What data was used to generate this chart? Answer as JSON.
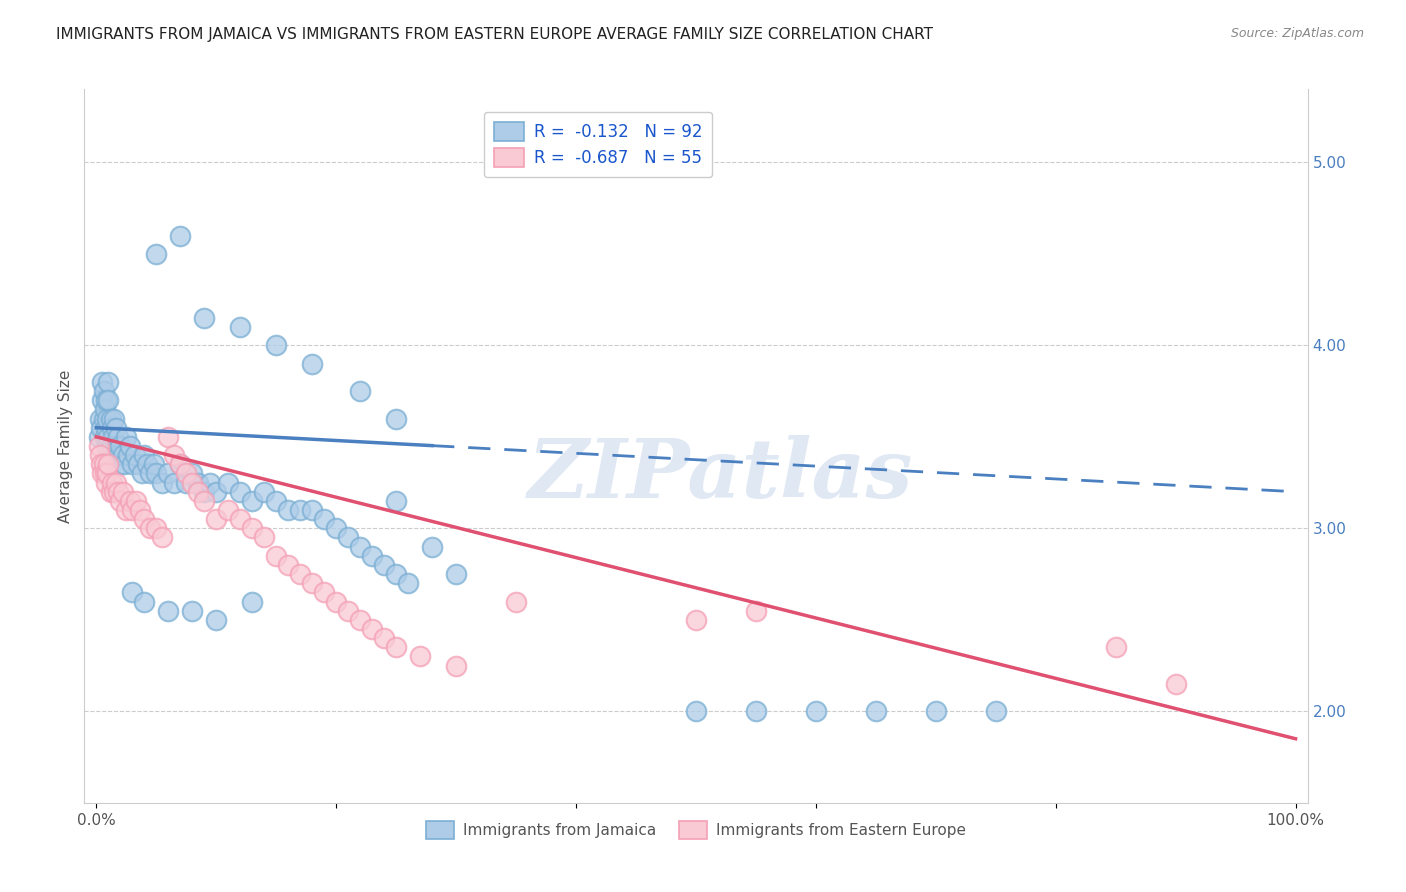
{
  "title": "IMMIGRANTS FROM JAMAICA VS IMMIGRANTS FROM EASTERN EUROPE AVERAGE FAMILY SIZE CORRELATION CHART",
  "source": "Source: ZipAtlas.com",
  "ylabel": "Average Family Size",
  "ylim": [
    1.5,
    5.4
  ],
  "xlim": [
    -0.01,
    1.01
  ],
  "right_yticks": [
    2.0,
    3.0,
    4.0,
    5.0
  ],
  "watermark": "ZIPatlas",
  "blue_color": "#7bafd4",
  "blue_fill": "#aecce8",
  "pink_color": "#f4a0b5",
  "pink_fill": "#f9cad4",
  "line_blue": "#4a7fc0",
  "line_pink": "#e05070",
  "jamaica_label": "Immigrants from Jamaica",
  "eastern_label": "Immigrants from Eastern Europe",
  "jamaica_trendline_x": [
    0.0,
    1.0
  ],
  "jamaica_trendline_y": [
    3.55,
    3.2
  ],
  "eastern_trendline_x": [
    0.0,
    1.0
  ],
  "eastern_trendline_y": [
    3.5,
    1.85
  ],
  "jamaica_scatter_x": [
    0.002,
    0.003,
    0.004,
    0.005,
    0.005,
    0.006,
    0.006,
    0.007,
    0.007,
    0.008,
    0.008,
    0.009,
    0.009,
    0.01,
    0.01,
    0.01,
    0.012,
    0.012,
    0.013,
    0.013,
    0.014,
    0.015,
    0.015,
    0.016,
    0.017,
    0.018,
    0.019,
    0.02,
    0.02,
    0.022,
    0.023,
    0.025,
    0.026,
    0.028,
    0.03,
    0.032,
    0.035,
    0.038,
    0.04,
    0.042,
    0.045,
    0.048,
    0.05,
    0.055,
    0.06,
    0.065,
    0.07,
    0.075,
    0.08,
    0.085,
    0.09,
    0.095,
    0.1,
    0.11,
    0.12,
    0.13,
    0.14,
    0.15,
    0.16,
    0.17,
    0.18,
    0.19,
    0.2,
    0.21,
    0.22,
    0.23,
    0.24,
    0.25,
    0.25,
    0.26,
    0.05,
    0.07,
    0.09,
    0.12,
    0.15,
    0.18,
    0.22,
    0.25,
    0.28,
    0.3,
    0.03,
    0.04,
    0.06,
    0.08,
    0.1,
    0.13,
    0.55,
    0.6,
    0.65,
    0.7,
    0.75,
    0.5
  ],
  "jamaica_scatter_y": [
    3.5,
    3.6,
    3.55,
    3.7,
    3.8,
    3.75,
    3.6,
    3.65,
    3.5,
    3.7,
    3.55,
    3.6,
    3.45,
    3.8,
    3.7,
    3.5,
    3.6,
    3.4,
    3.55,
    3.45,
    3.5,
    3.6,
    3.4,
    3.55,
    3.45,
    3.5,
    3.4,
    3.45,
    3.35,
    3.4,
    3.35,
    3.5,
    3.4,
    3.45,
    3.35,
    3.4,
    3.35,
    3.3,
    3.4,
    3.35,
    3.3,
    3.35,
    3.3,
    3.25,
    3.3,
    3.25,
    3.35,
    3.25,
    3.3,
    3.25,
    3.2,
    3.25,
    3.2,
    3.25,
    3.2,
    3.15,
    3.2,
    3.15,
    3.1,
    3.1,
    3.1,
    3.05,
    3.0,
    2.95,
    2.9,
    2.85,
    2.8,
    2.75,
    3.15,
    2.7,
    4.5,
    4.6,
    4.15,
    4.1,
    4.0,
    3.9,
    3.75,
    3.6,
    2.9,
    2.75,
    2.65,
    2.6,
    2.55,
    2.55,
    2.5,
    2.6,
    2.0,
    2.0,
    2.0,
    2.0,
    2.0,
    2.0
  ],
  "eastern_scatter_x": [
    0.002,
    0.003,
    0.004,
    0.005,
    0.006,
    0.007,
    0.008,
    0.009,
    0.01,
    0.012,
    0.013,
    0.015,
    0.016,
    0.018,
    0.02,
    0.022,
    0.025,
    0.028,
    0.03,
    0.033,
    0.036,
    0.04,
    0.045,
    0.05,
    0.055,
    0.06,
    0.065,
    0.07,
    0.075,
    0.08,
    0.085,
    0.09,
    0.1,
    0.11,
    0.12,
    0.13,
    0.14,
    0.15,
    0.16,
    0.17,
    0.18,
    0.19,
    0.2,
    0.21,
    0.22,
    0.23,
    0.24,
    0.25,
    0.27,
    0.3,
    0.35,
    0.5,
    0.55,
    0.85,
    0.9
  ],
  "eastern_scatter_y": [
    3.45,
    3.4,
    3.35,
    3.3,
    3.35,
    3.3,
    3.25,
    3.3,
    3.35,
    3.2,
    3.25,
    3.2,
    3.25,
    3.2,
    3.15,
    3.2,
    3.1,
    3.15,
    3.1,
    3.15,
    3.1,
    3.05,
    3.0,
    3.0,
    2.95,
    3.5,
    3.4,
    3.35,
    3.3,
    3.25,
    3.2,
    3.15,
    3.05,
    3.1,
    3.05,
    3.0,
    2.95,
    2.85,
    2.8,
    2.75,
    2.7,
    2.65,
    2.6,
    2.55,
    2.5,
    2.45,
    2.4,
    2.35,
    2.3,
    2.25,
    2.6,
    2.5,
    2.55,
    2.35,
    2.15
  ]
}
